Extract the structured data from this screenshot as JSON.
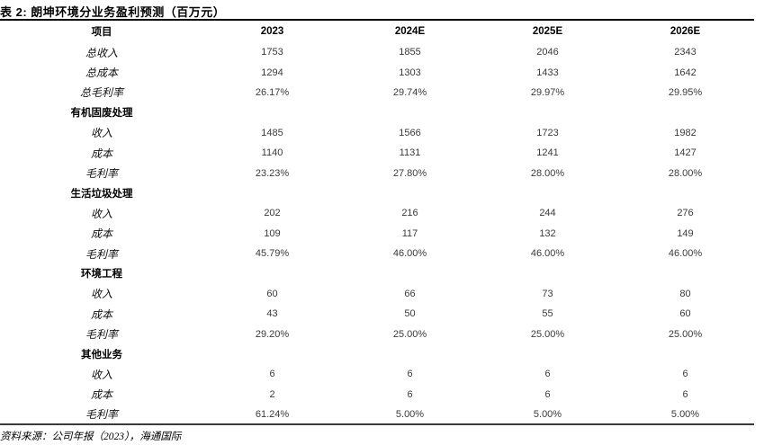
{
  "page": {
    "title": "表 2:  朗坤环境分业务盈利预测（百万元）",
    "source_note": "资料来源：公司年报（2023），海通国际"
  },
  "colors": {
    "background": "#ffffff",
    "heading_text": "#000000",
    "number_text": "#3a3a3a",
    "rule_top": "#000000",
    "rule_bottom": "#3a3a3a"
  },
  "table": {
    "columns": [
      "项目",
      "2023",
      "2024E",
      "2025E",
      "2026E"
    ],
    "rows": [
      {
        "type": "total",
        "label": "总收入",
        "values": [
          "1753",
          "1855",
          "2046",
          "2343"
        ]
      },
      {
        "type": "total",
        "label": "总成本",
        "values": [
          "1294",
          "1303",
          "1433",
          "1642"
        ]
      },
      {
        "type": "total",
        "label": "总毛利率",
        "values": [
          "26.17%",
          "29.74%",
          "29.97%",
          "29.95%"
        ]
      },
      {
        "type": "section",
        "label": "有机固废处理",
        "values": [
          "",
          "",
          "",
          ""
        ]
      },
      {
        "type": "data",
        "label": "收入",
        "values": [
          "1485",
          "1566",
          "1723",
          "1982"
        ]
      },
      {
        "type": "data",
        "label": "成本",
        "values": [
          "1140",
          "1131",
          "1241",
          "1427"
        ]
      },
      {
        "type": "data",
        "label": "毛利率",
        "values": [
          "23.23%",
          "27.80%",
          "28.00%",
          "28.00%"
        ]
      },
      {
        "type": "section",
        "label": "生活垃圾处理",
        "values": [
          "",
          "",
          "",
          ""
        ]
      },
      {
        "type": "data",
        "label": "收入",
        "values": [
          "202",
          "216",
          "244",
          "276"
        ]
      },
      {
        "type": "data",
        "label": "成本",
        "values": [
          "109",
          "117",
          "132",
          "149"
        ]
      },
      {
        "type": "data",
        "label": "毛利率",
        "values": [
          "45.79%",
          "46.00%",
          "46.00%",
          "46.00%"
        ]
      },
      {
        "type": "section",
        "label": "环境工程",
        "values": [
          "",
          "",
          "",
          ""
        ]
      },
      {
        "type": "data",
        "label": "收入",
        "values": [
          "60",
          "66",
          "73",
          "80"
        ]
      },
      {
        "type": "data",
        "label": "成本",
        "values": [
          "43",
          "50",
          "55",
          "60"
        ]
      },
      {
        "type": "data",
        "label": "毛利率",
        "values": [
          "29.20%",
          "25.00%",
          "25.00%",
          "25.00%"
        ]
      },
      {
        "type": "section",
        "label": "其他业务",
        "values": [
          "",
          "",
          "",
          ""
        ]
      },
      {
        "type": "data",
        "label": "收入",
        "values": [
          "6",
          "6",
          "6",
          "6"
        ]
      },
      {
        "type": "data",
        "label": "成本",
        "values": [
          "2",
          "6",
          "6",
          "6"
        ]
      },
      {
        "type": "data",
        "label": "毛利率",
        "values": [
          "61.24%",
          "5.00%",
          "5.00%",
          "5.00%"
        ]
      }
    ]
  }
}
